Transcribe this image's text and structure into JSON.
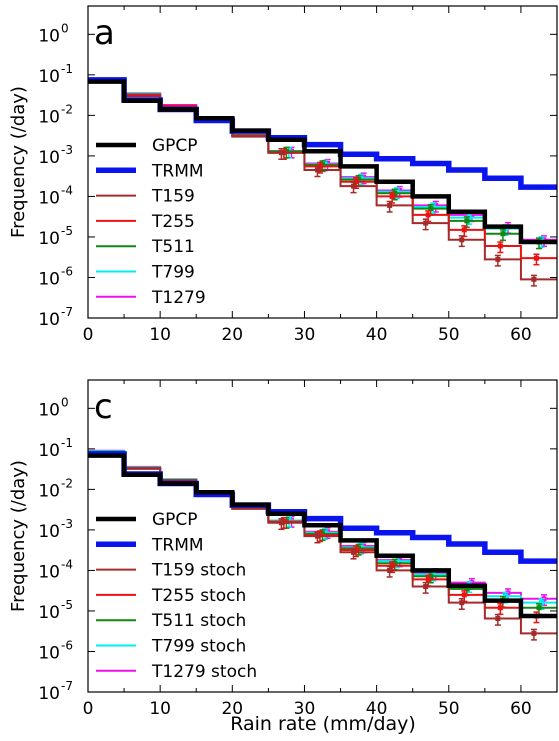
{
  "figure": {
    "xlabel": "Rain rate (mm/day)"
  },
  "chart_data": [
    {
      "type": "line",
      "panel_letter": "a",
      "xlabel": "",
      "ylabel": "Frequency (/day)",
      "xlim": [
        0,
        65
      ],
      "ylim": [
        1e-07,
        5
      ],
      "yscale": "log",
      "step": true,
      "x_edges": [
        0,
        5,
        10,
        15,
        20,
        25,
        30,
        35,
        40,
        45,
        50,
        55,
        60,
        65
      ],
      "xticks": [
        0,
        10,
        20,
        30,
        40,
        50,
        60
      ],
      "yticks": [
        {
          "value": 1e-07,
          "mant": "10",
          "exp": "-7"
        },
        {
          "value": 1e-06,
          "mant": "10",
          "exp": "-6"
        },
        {
          "value": 1e-05,
          "mant": "10",
          "exp": "-5"
        },
        {
          "value": 0.0001,
          "mant": "10",
          "exp": "-4"
        },
        {
          "value": 0.001,
          "mant": "10",
          "exp": "-3"
        },
        {
          "value": 0.01,
          "mant": "10",
          "exp": "-2"
        },
        {
          "value": 0.1,
          "mant": "10",
          "exp": "-1"
        },
        {
          "value": 1,
          "mant": "10",
          "exp": "0"
        }
      ],
      "legend_position": "lower-left",
      "series": [
        {
          "name": "GPCP",
          "color": "#000000",
          "width": 4.5,
          "errorbars": false,
          "values": [
            0.068,
            0.023,
            0.014,
            0.0085,
            0.0042,
            0.0025,
            0.0013,
            0.00055,
            0.00023,
            0.0001,
            4.2e-05,
            1.8e-05,
            7.5e-06
          ]
        },
        {
          "name": "TRMM",
          "color": "#0a14ee",
          "width": 5.5,
          "errorbars": false,
          "values": [
            0.075,
            0.024,
            0.014,
            0.0075,
            0.0041,
            0.0028,
            0.0019,
            0.0011,
            0.00085,
            0.00065,
            0.00045,
            0.00028,
            0.00017
          ]
        },
        {
          "name": "T159",
          "color": "#a52a2a",
          "width": 2,
          "errorbars": true,
          "values": [
            0.07,
            0.03,
            0.016,
            0.008,
            0.003,
            0.0012,
            0.00045,
            0.00018,
            6e-05,
            2.2e-05,
            8.5e-06,
            2.8e-06,
            9e-07
          ]
        },
        {
          "name": "T255",
          "color": "#ee1111",
          "width": 2,
          "errorbars": true,
          "values": [
            0.072,
            0.032,
            0.017,
            0.0082,
            0.0031,
            0.0012,
            0.00055,
            0.00023,
            0.0001,
            3.5e-05,
            1.5e-05,
            6e-06,
            3e-06
          ]
        },
        {
          "name": "T511",
          "color": "#118811",
          "width": 2,
          "errorbars": true,
          "values": [
            0.075,
            0.033,
            0.017,
            0.0082,
            0.0032,
            0.0013,
            0.0006,
            0.00026,
            0.00012,
            5e-05,
            2.5e-05,
            1.2e-05,
            7.5e-06
          ]
        },
        {
          "name": "T799",
          "color": "#00eeee",
          "width": 2,
          "errorbars": true,
          "values": [
            0.078,
            0.034,
            0.017,
            0.0083,
            0.0032,
            0.0013,
            0.00062,
            0.00028,
            0.00013,
            5.5e-05,
            3e-05,
            1.6e-05,
            8e-06
          ]
        },
        {
          "name": "T1279",
          "color": "#ee11ee",
          "width": 2,
          "errorbars": true,
          "values": [
            0.08,
            0.035,
            0.018,
            0.0084,
            0.0033,
            0.0013,
            0.00065,
            0.0003,
            0.00014,
            6e-05,
            3.5e-05,
            1.8e-05,
            8.5e-06
          ]
        }
      ]
    },
    {
      "type": "line",
      "panel_letter": "c",
      "xlabel": "Rain rate (mm/day)",
      "ylabel": "Frequency (/day)",
      "xlim": [
        0,
        65
      ],
      "ylim": [
        1e-07,
        5
      ],
      "yscale": "log",
      "step": true,
      "x_edges": [
        0,
        5,
        10,
        15,
        20,
        25,
        30,
        35,
        40,
        45,
        50,
        55,
        60,
        65
      ],
      "xticks": [
        0,
        10,
        20,
        30,
        40,
        50,
        60
      ],
      "yticks": [
        {
          "value": 1e-07,
          "mant": "10",
          "exp": "-7"
        },
        {
          "value": 1e-06,
          "mant": "10",
          "exp": "-6"
        },
        {
          "value": 1e-05,
          "mant": "10",
          "exp": "-5"
        },
        {
          "value": 0.0001,
          "mant": "10",
          "exp": "-4"
        },
        {
          "value": 0.001,
          "mant": "10",
          "exp": "-3"
        },
        {
          "value": 0.01,
          "mant": "10",
          "exp": "-2"
        },
        {
          "value": 0.1,
          "mant": "10",
          "exp": "-1"
        },
        {
          "value": 1,
          "mant": "10",
          "exp": "0"
        }
      ],
      "legend_position": "lower-left",
      "series": [
        {
          "name": "GPCP",
          "color": "#000000",
          "width": 4.5,
          "errorbars": false,
          "values": [
            0.068,
            0.023,
            0.014,
            0.0085,
            0.0042,
            0.0025,
            0.0013,
            0.00055,
            0.00023,
            0.0001,
            4.2e-05,
            1.8e-05,
            7.5e-06
          ]
        },
        {
          "name": "TRMM",
          "color": "#0a14ee",
          "width": 5.5,
          "errorbars": false,
          "values": [
            0.075,
            0.024,
            0.014,
            0.0075,
            0.0041,
            0.0028,
            0.0019,
            0.0011,
            0.00085,
            0.00065,
            0.00045,
            0.00028,
            0.00017
          ]
        },
        {
          "name": "T159 stoch",
          "color": "#a52a2a",
          "width": 2,
          "errorbars": true,
          "values": [
            0.08,
            0.032,
            0.016,
            0.0082,
            0.0033,
            0.0015,
            0.0007,
            0.00028,
            0.0001,
            4e-05,
            1.6e-05,
            6.5e-06,
            2.8e-06
          ]
        },
        {
          "name": "T255 stoch",
          "color": "#ee1111",
          "width": 2,
          "errorbars": true,
          "values": [
            0.082,
            0.033,
            0.017,
            0.0083,
            0.0034,
            0.0016,
            0.00075,
            0.00032,
            0.00013,
            6e-05,
            2.5e-05,
            1.2e-05,
            7.5e-06
          ]
        },
        {
          "name": "T511 stoch",
          "color": "#118811",
          "width": 2,
          "errorbars": true,
          "values": [
            0.085,
            0.034,
            0.017,
            0.0084,
            0.0035,
            0.0016,
            0.0008,
            0.00035,
            0.00015,
            7.2e-05,
            3.5e-05,
            1.8e-05,
            1.2e-05
          ]
        },
        {
          "name": "T799 stoch",
          "color": "#00eeee",
          "width": 2,
          "errorbars": true,
          "values": [
            0.088,
            0.035,
            0.018,
            0.0085,
            0.0036,
            0.0017,
            0.00085,
            0.00037,
            0.00017,
            8e-05,
            4.2e-05,
            2.3e-05,
            1.6e-05
          ]
        },
        {
          "name": "T1279 stoch",
          "color": "#ee11ee",
          "width": 2,
          "errorbars": true,
          "values": [
            0.09,
            0.036,
            0.018,
            0.0086,
            0.0037,
            0.0017,
            0.0009,
            0.0004,
            0.00018,
            8.8e-05,
            5e-05,
            2.8e-05,
            2e-05
          ]
        }
      ]
    }
  ]
}
